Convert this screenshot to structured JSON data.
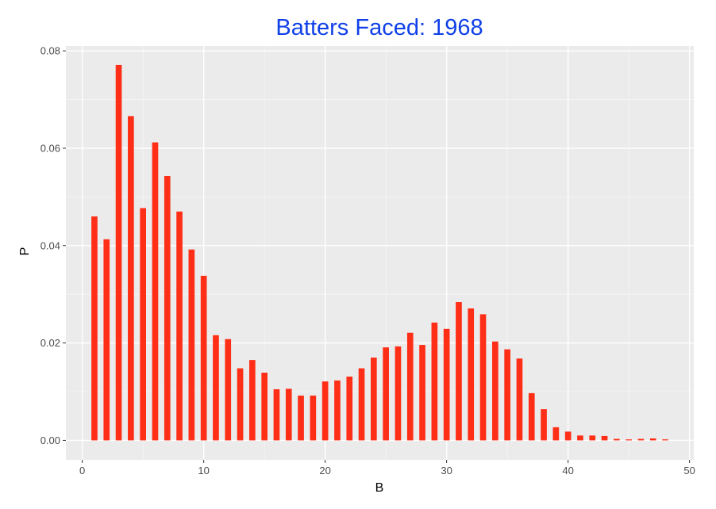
{
  "chart_data": {
    "type": "bar",
    "title": "Batters Faced: 1968",
    "xlabel": "B",
    "ylabel": "P",
    "xlim": [
      -1.35,
      50.35
    ],
    "ylim": [
      -0.004,
      0.081
    ],
    "x_ticks": [
      0,
      10,
      20,
      30,
      40,
      50
    ],
    "x_tick_labels": [
      "0",
      "10",
      "20",
      "30",
      "40",
      "50"
    ],
    "y_ticks": [
      0.0,
      0.02,
      0.04,
      0.06,
      0.08
    ],
    "y_tick_labels": [
      "0.00",
      "0.02",
      "0.04",
      "0.06",
      "0.08"
    ],
    "grid": true,
    "bar_width": 0.5,
    "x": [
      1,
      2,
      3,
      4,
      5,
      6,
      7,
      8,
      9,
      10,
      11,
      12,
      13,
      14,
      15,
      16,
      17,
      18,
      19,
      20,
      21,
      22,
      23,
      24,
      25,
      26,
      27,
      28,
      29,
      30,
      31,
      32,
      33,
      34,
      35,
      36,
      37,
      38,
      39,
      40,
      41,
      42,
      43,
      44,
      45,
      46,
      47,
      48
    ],
    "values": [
      0.046,
      0.0413,
      0.0771,
      0.0666,
      0.0477,
      0.0612,
      0.0543,
      0.047,
      0.0392,
      0.0338,
      0.0216,
      0.0208,
      0.0148,
      0.0165,
      0.0139,
      0.0105,
      0.0106,
      0.0092,
      0.0092,
      0.0121,
      0.0123,
      0.0131,
      0.0148,
      0.017,
      0.0191,
      0.0193,
      0.0221,
      0.0196,
      0.0242,
      0.0229,
      0.0284,
      0.0271,
      0.0259,
      0.0203,
      0.0187,
      0.0168,
      0.0097,
      0.0064,
      0.0027,
      0.0018,
      0.001,
      0.001,
      0.0009,
      0.0003,
      0.0002,
      0.0003,
      0.0004,
      0.0002
    ]
  },
  "colors": {
    "bar": "#ff2e17",
    "panel": "#ebebeb",
    "grid_major": "#ffffff",
    "grid_minor": "#f5f5f5",
    "title": "#1040e8",
    "tick_text": "#4d4d4d",
    "axis_text": "#000000",
    "tick_mark": "#333333"
  }
}
